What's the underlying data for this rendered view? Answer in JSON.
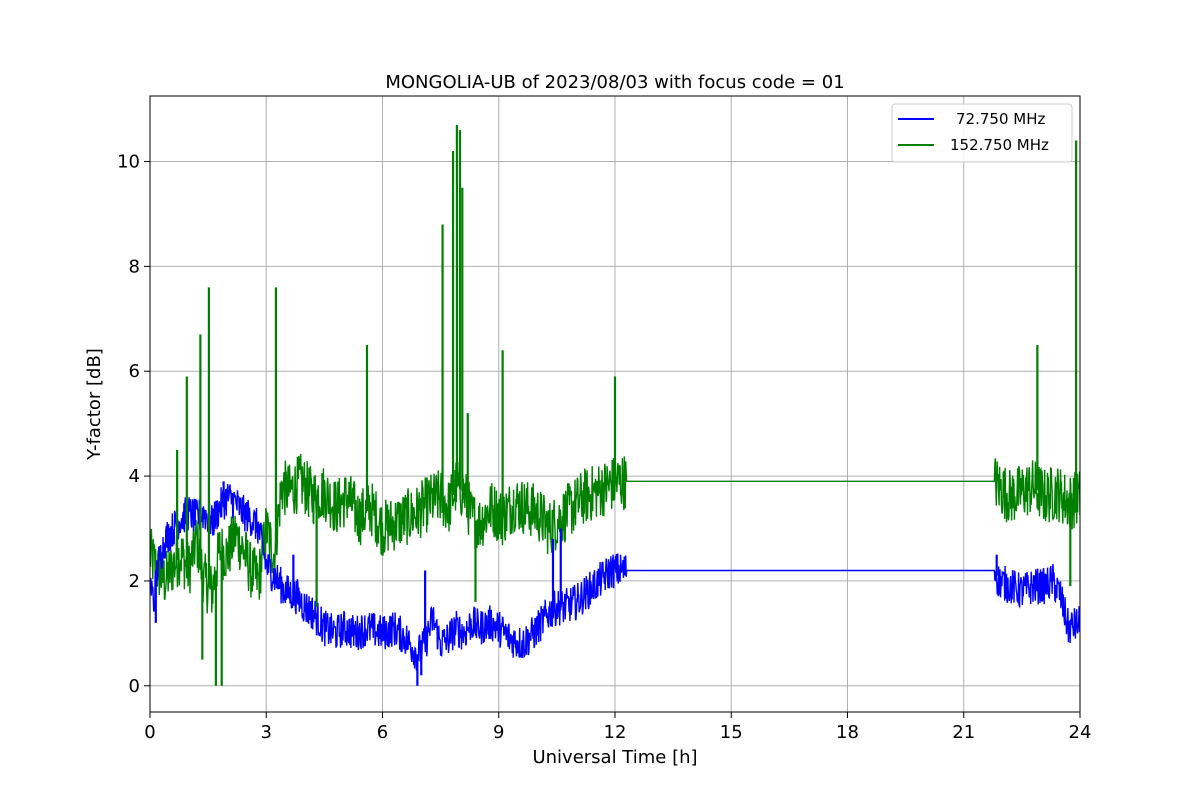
{
  "chart_data": {
    "type": "line",
    "title": "MONGOLIA-UB of 2023/08/03 with focus code = 01",
    "xlabel": "Universal Time [h]",
    "ylabel": "Y-factor [dB]",
    "xlim": [
      0,
      24
    ],
    "ylim": [
      -0.5,
      11.25
    ],
    "xticks": [
      0,
      3,
      6,
      9,
      12,
      15,
      18,
      21,
      24
    ],
    "xtick_labels": [
      "0",
      "3",
      "6",
      "9",
      "12",
      "15",
      "18",
      "21",
      "24"
    ],
    "yticks": [
      0,
      2,
      4,
      6,
      8,
      10
    ],
    "ytick_labels": [
      "0",
      "2",
      "4",
      "6",
      "8",
      "10"
    ],
    "grid": true,
    "legend_position": "top-right",
    "series": [
      {
        "name": "72.750 MHz",
        "color": "#0000ff",
        "x": [
          0,
          0.1,
          0.2,
          0.4,
          0.6,
          0.8,
          1.0,
          1.2,
          1.4,
          1.6,
          1.8,
          2.0,
          2.2,
          2.4,
          2.6,
          2.8,
          3.0,
          3.2,
          3.5,
          3.8,
          4.0,
          4.2,
          4.5,
          4.8,
          5.0,
          5.3,
          5.6,
          6.0,
          6.3,
          6.6,
          6.9,
          7.1,
          7.3,
          7.5,
          7.7,
          7.9,
          8.1,
          8.3,
          8.5,
          8.8,
          9.0,
          9.3,
          9.6,
          9.9,
          10.1,
          10.3,
          10.5,
          10.7,
          11.0,
          11.3,
          11.6,
          11.9,
          12.2,
          21.8,
          21.9,
          22.2,
          22.5,
          22.8,
          23.1,
          23.3,
          23.5,
          23.7,
          24.0
        ],
        "y": [
          2.0,
          1.6,
          2.3,
          2.8,
          3.0,
          3.2,
          3.3,
          3.2,
          3.3,
          3.1,
          3.4,
          3.6,
          3.5,
          3.3,
          3.2,
          3.0,
          2.3,
          2.1,
          1.8,
          1.7,
          1.5,
          1.4,
          1.1,
          1.0,
          1.1,
          1.0,
          1.1,
          1.0,
          1.1,
          0.9,
          0.6,
          0.8,
          1.3,
          0.8,
          0.9,
          1.1,
          1.0,
          1.2,
          1.1,
          1.2,
          1.1,
          0.9,
          0.8,
          1.0,
          1.2,
          1.4,
          1.5,
          1.5,
          1.6,
          1.8,
          2.0,
          2.2,
          2.2,
          2.2,
          2.0,
          1.9,
          1.8,
          1.9,
          1.9,
          2.0,
          1.7,
          1.1,
          1.2
        ]
      },
      {
        "name": "152.750 MHz",
        "color": "#008000",
        "x": [
          0,
          0.2,
          0.4,
          0.6,
          0.8,
          1.0,
          1.2,
          1.4,
          1.6,
          1.8,
          2.0,
          2.2,
          2.4,
          2.6,
          2.8,
          3.0,
          3.2,
          3.4,
          3.6,
          3.9,
          4.2,
          4.5,
          4.8,
          5.1,
          5.4,
          5.7,
          6.0,
          6.3,
          6.6,
          6.9,
          7.2,
          7.5,
          7.7,
          7.9,
          8.1,
          8.3,
          8.5,
          8.8,
          9.1,
          9.4,
          9.7,
          10.0,
          10.3,
          10.6,
          10.9,
          11.2,
          11.5,
          11.8,
          12.1,
          12.3,
          21.8,
          21.9,
          22.2,
          22.5,
          22.8,
          23.1,
          23.4,
          23.7,
          24.0
        ],
        "y": [
          2.5,
          2.2,
          2.0,
          2.3,
          2.5,
          2.2,
          2.8,
          2.0,
          1.8,
          2.6,
          2.5,
          2.9,
          2.6,
          2.2,
          2.0,
          3.0,
          2.5,
          3.8,
          3.7,
          3.9,
          3.6,
          3.7,
          3.4,
          3.6,
          3.2,
          3.4,
          3.0,
          3.1,
          3.2,
          3.3,
          3.5,
          3.6,
          3.4,
          3.8,
          3.7,
          3.2,
          3.1,
          3.4,
          3.2,
          3.5,
          3.4,
          3.3,
          3.0,
          3.2,
          3.4,
          3.6,
          3.7,
          3.8,
          3.9,
          3.9,
          3.9,
          3.8,
          3.6,
          3.7,
          3.8,
          3.6,
          3.7,
          3.5,
          3.6
        ]
      }
    ],
    "spikes": [
      {
        "series": 1,
        "points": [
          [
            0.7,
            4.5
          ],
          [
            0.95,
            5.9
          ],
          [
            1.3,
            6.7
          ],
          [
            1.52,
            7.6
          ],
          [
            3.25,
            7.6
          ],
          [
            5.6,
            6.5
          ],
          [
            7.55,
            8.8
          ],
          [
            7.82,
            10.2
          ],
          [
            7.92,
            10.7
          ],
          [
            8.0,
            10.6
          ],
          [
            8.06,
            9.5
          ],
          [
            8.2,
            5.2
          ],
          [
            9.1,
            6.4
          ],
          [
            12.0,
            5.9
          ],
          [
            22.9,
            6.5
          ],
          [
            23.9,
            10.4
          ]
        ]
      },
      {
        "series": 1,
        "dips": [
          [
            1.35,
            0.5
          ],
          [
            1.7,
            0.0
          ],
          [
            1.85,
            0.0
          ],
          [
            4.3,
            1.5
          ],
          [
            8.4,
            1.6
          ],
          [
            23.75,
            1.9
          ]
        ]
      },
      {
        "series": 0,
        "points": [
          [
            1.9,
            3.9
          ],
          [
            3.7,
            2.5
          ],
          [
            10.4,
            2.8
          ],
          [
            10.6,
            3.0
          ],
          [
            21.85,
            2.5
          ],
          [
            7.1,
            2.2
          ]
        ]
      },
      {
        "series": 0,
        "dips": [
          [
            6.9,
            0.0
          ],
          [
            7.0,
            0.2
          ],
          [
            0.15,
            1.2
          ]
        ]
      }
    ]
  }
}
